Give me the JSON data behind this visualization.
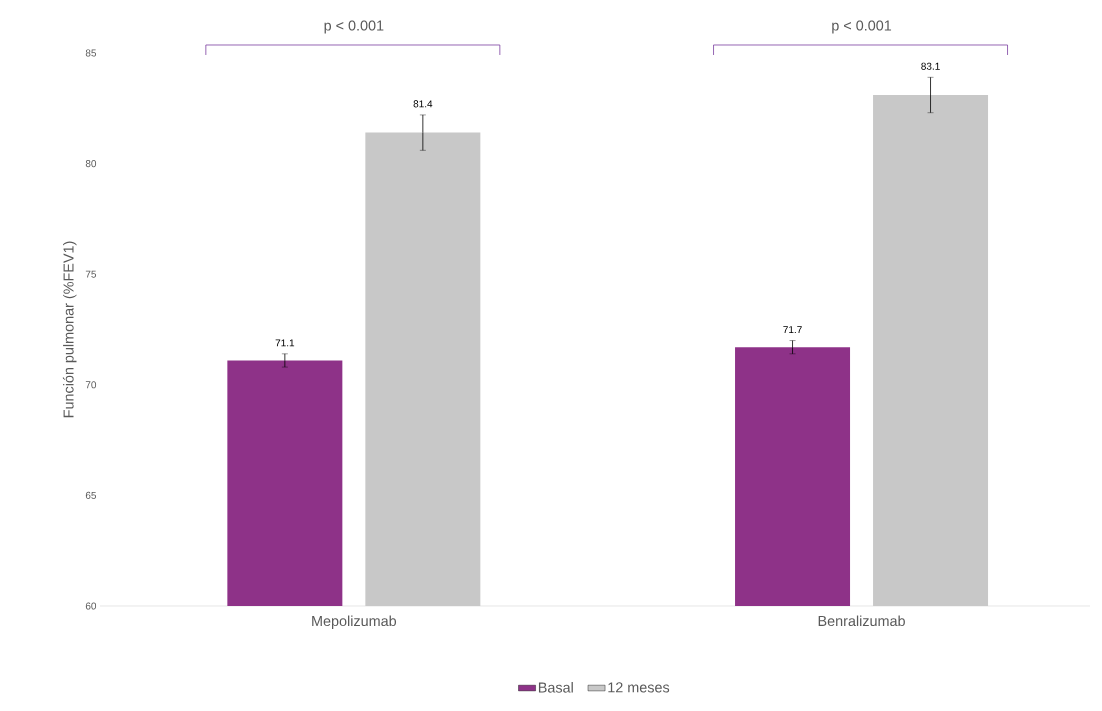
{
  "chart_data": {
    "type": "bar",
    "ylabel": "Función pulmonar (%FEV1)",
    "categories": [
      "Mepolizumab",
      "Benralizumab"
    ],
    "series": [
      {
        "name": "Basal",
        "color": "#8e3288",
        "values": [
          71.1,
          71.7
        ],
        "errors": [
          0.3,
          0.3
        ]
      },
      {
        "name": "12 meses",
        "color": "#c8c8c8",
        "values": [
          81.4,
          83.1
        ],
        "errors": [
          0.8,
          0.8
        ]
      }
    ],
    "ylim": [
      60,
      85
    ],
    "yticks": [
      60,
      65,
      70,
      75,
      80,
      85
    ],
    "data_labels": true,
    "grid": false,
    "legend": "bottom",
    "annotations": [
      "p < 0.001",
      "p < 0.001"
    ]
  }
}
